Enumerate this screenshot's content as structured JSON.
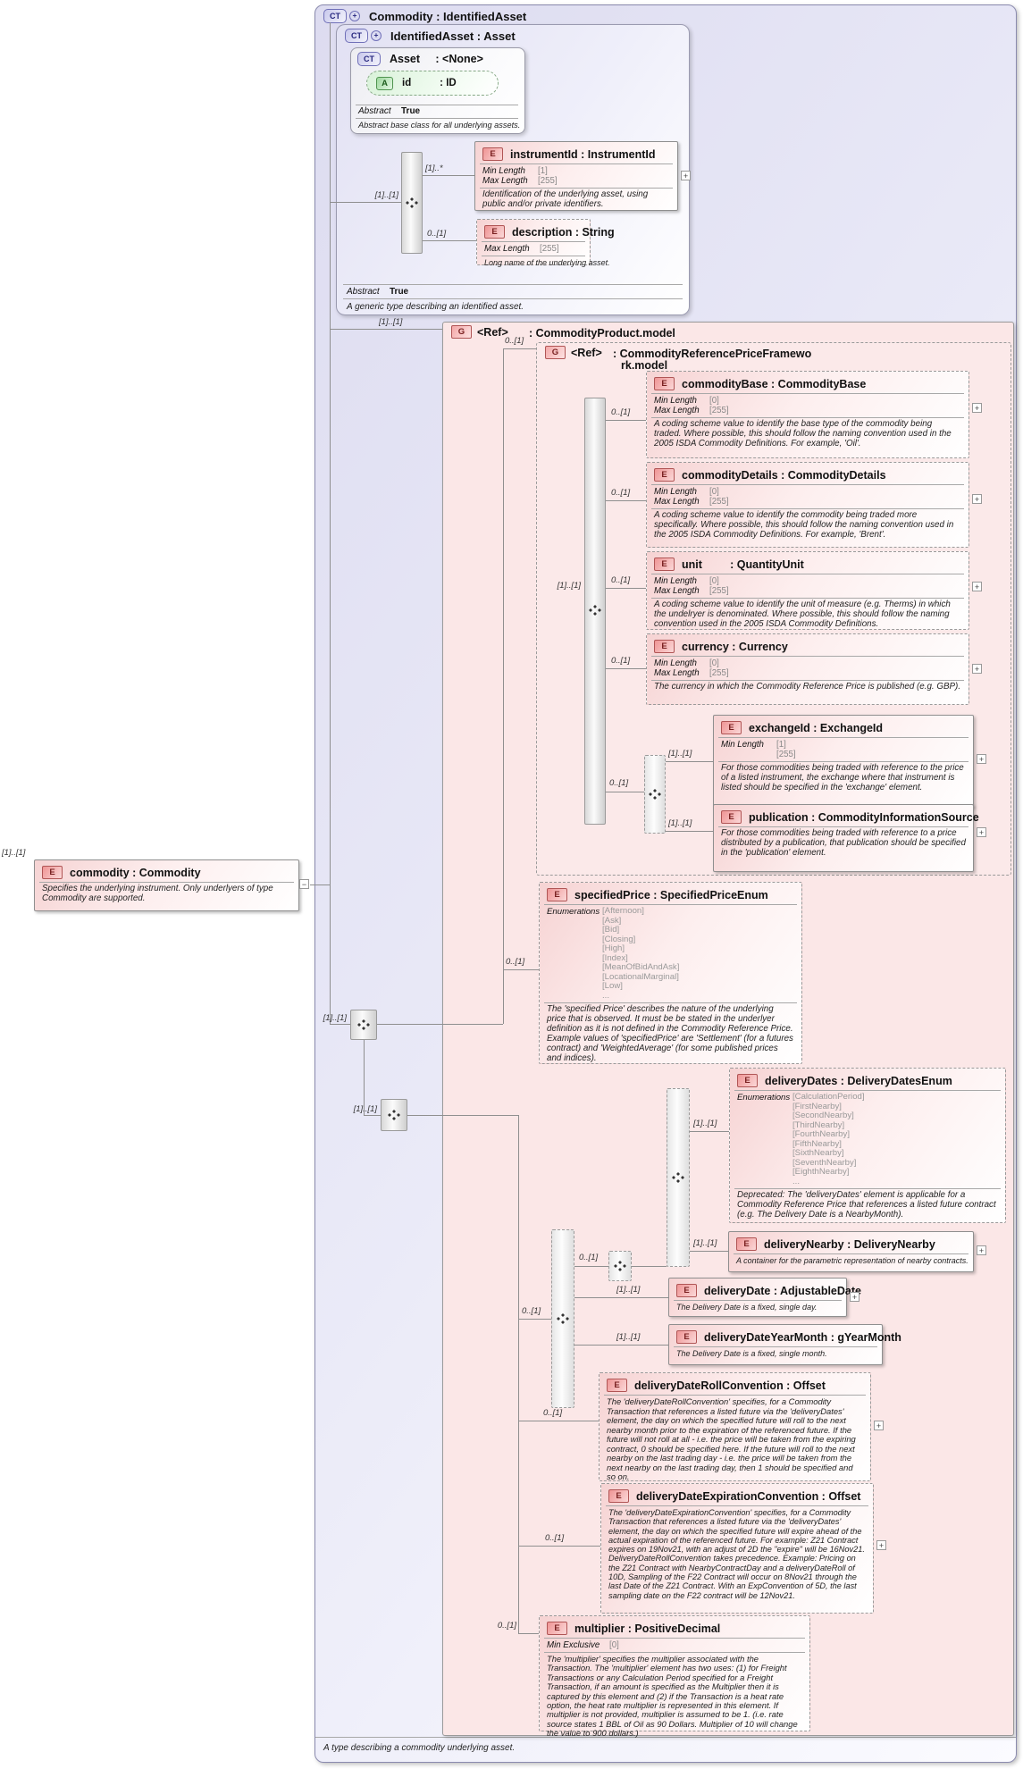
{
  "labels": {
    "ct": "CT",
    "e": "E",
    "g": "G",
    "a": "A",
    "plus": "+",
    "minus": "−",
    "card_1_1": "[1]..[1]",
    "card_0_1": "0..[1]",
    "card_1_many": "[1]..*",
    "abstract": "Abstract",
    "true": "True",
    "enumerations": "Enumerations",
    "min_length": "Min Length",
    "max_length": "Max Length",
    "min_exclusive": "Min Exclusive",
    "ref": "<Ref>"
  },
  "outer": {
    "title": "Commodity : IdentifiedAsset",
    "footer": "A type describing a commodity underlying asset."
  },
  "identified_asset": {
    "title": "IdentifiedAsset : Asset",
    "abstract_value": "True",
    "doc": "A generic type describing an identified asset."
  },
  "asset": {
    "title": "Asset     : <None>",
    "attr_id": "id          : ID",
    "abstract_value": "True",
    "doc": "Abstract base class for all underlying assets."
  },
  "instrument_id": {
    "title": "instrumentId : InstrumentId",
    "min": "[1]",
    "max": "[255]",
    "doc": "Identification of the underlying asset, using public and/or private identifiers."
  },
  "description": {
    "title": "description : String",
    "max": "[255]",
    "doc": "Long name of the underlying asset."
  },
  "commodity_product": {
    "title": ": CommodityProduct.model"
  },
  "crpf": {
    "title_line1": ": CommodityReferencePriceFramewo",
    "title_line2": "rk.model"
  },
  "commodity_base": {
    "title": "commodityBase : CommodityBase",
    "min": "[0]",
    "max": "[255]",
    "doc": "A coding scheme value to identify the base type of the commodity being traded. Where possible, this should follow the naming convention used in the 2005 ISDA Commodity Definitions. For example, 'Oil'."
  },
  "commodity_details": {
    "title": "commodityDetails : CommodityDetails",
    "min": "[0]",
    "max": "[255]",
    "doc": "A coding scheme value to identify the commodity being traded more specifically. Where possible, this should follow the naming convention used in the 2005 ISDA Commodity Definitions. For example, 'Brent'."
  },
  "unit": {
    "title": "unit         : QuantityUnit",
    "min": "[0]",
    "max": "[255]",
    "doc": "A coding scheme value to identify the unit of measure (e.g. Therms) in which the undelryer is denominated. Where possible, this should follow the naming convention used in the 2005 ISDA Commodity Definitions."
  },
  "currency": {
    "title": "currency : Currency",
    "min": "[0]",
    "max": "[255]",
    "doc": "The currency in which the Commodity Reference Price is published (e.g. GBP)."
  },
  "exchange_id": {
    "title": "exchangeId : ExchangeId",
    "min": "[1]",
    "max": "[255]",
    "doc": "For those commodities being traded with reference to the price of a listed instrument, the exchange where that instrument is listed should be specified in the 'exchange' element."
  },
  "publication": {
    "title": "publication : CommodityInformationSource",
    "doc": "For those commodities being traded with reference to a price distributed by a publication, that publication should be specified in the 'publication' element."
  },
  "commodity_element": {
    "title": "commodity : Commodity",
    "doc": "Specifies the underlying instrument. Only underlyers of type Commodity are supported."
  },
  "specified_price": {
    "title": "specifiedPrice : SpecifiedPriceEnum",
    "enums": [
      "[Afternoon]",
      "[Ask]",
      "[Bid]",
      "[Closing]",
      "[High]",
      "[Index]",
      "[MeanOfBidAndAsk]",
      "[LocationalMarginal]",
      "[Low]",
      "..."
    ],
    "doc": "The 'specified Price' describes the nature of the underlying price that is observed. It must be be stated in the underlyer definition as it is not defined in the Commodity Reference Price. Example values of 'specifiedPrice' are 'Settlement' (for a futures contract) and 'WeightedAverage' (for some published prices and indices)."
  },
  "delivery_dates": {
    "title": "deliveryDates : DeliveryDatesEnum",
    "enums": [
      "[CalculationPeriod]",
      "[FirstNearby]",
      "[SecondNearby]",
      "[ThirdNearby]",
      "[FourthNearby]",
      "[FifthNearby]",
      "[SixthNearby]",
      "[SeventhNearby]",
      "[EighthNearby]",
      "..."
    ],
    "doc": "Deprecated: The 'deliveryDates' element is applicable for a Commodity Reference Price that references a listed future contract (e.g. The Delivery Date is a NearbyMonth)."
  },
  "delivery_nearby": {
    "title": "deliveryNearby : DeliveryNearby",
    "doc": "A container for the parametric representation of nearby contracts."
  },
  "delivery_date": {
    "title": "deliveryDate : AdjustableDate",
    "doc": "The Delivery Date is a fixed, single day."
  },
  "delivery_date_year_month": {
    "title": "deliveryDateYearMonth : gYearMonth",
    "doc": "The Delivery Date is a fixed, single month."
  },
  "delivery_date_roll": {
    "title": "deliveryDateRollConvention : Offset",
    "doc": "The 'deliveryDateRollConvention' specifies, for a Commodity Transaction that references a listed future via the 'deliveryDates' element, the day on which the specified future will roll to the next nearby month prior to the expiration of the referenced future. If the future will not roll at all - i.e. the price will be taken from the expiring contract, 0 should be specified here. If the future will roll to the next nearby on the last trading day - i.e. the price will be taken from the next nearby on the last trading day, then 1 should be specified and so on."
  },
  "delivery_date_expiration": {
    "title": "deliveryDateExpirationConvention : Offset",
    "doc": "The 'deliveryDateExpirationConvention' specifies, for a Commodity Transaction that references a listed future via the 'deliveryDates' element, the day on which the specified future will expire ahead of the actual expiration of the referenced future. For example: Z21 Contract expires on 19Nov21, with an adjust of 2D the \"expire\" will be 16Nov21. DeliveryDateRollConvention takes precedence. Example: Pricing on the Z21 Contract with NearbyContractDay and a deliveryDateRoll of 10D, Sampling of the F22 Contract will occur on 8Nov21 through the last Date of the Z21 Contract. With an ExpConvention of 5D, the last sampling date on the F22 contract will be 12Nov21."
  },
  "multiplier": {
    "title": "multiplier : PositiveDecimal",
    "min_exclusive": "[0]",
    "doc": "The 'multiplier' specifies the multiplier associated with the Transaction. The 'multiplier' element has two uses: (1) for Freight Transactions or any Calculation Period specified for a Freight Transaction, if an amount is specified as the Multiplier then it is captured by this element and (2) if the Transaction is a heat rate option, the heat rate multiplier is represented in this element. If multiplier is not provided, multiplier is assumed to be 1. (i.e. rate source states 1 BBL of Oil as 90 Dollars. Multiplier of 10 will change the value to 900 dollars.)"
  }
}
